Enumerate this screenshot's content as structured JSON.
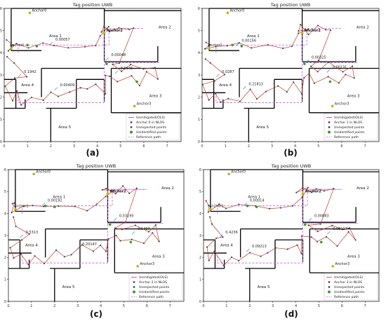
{
  "figure": {
    "panels": [
      {
        "title": "Tag position UWB",
        "caption": "(a)",
        "legend": [
          "Unmitigated(OLS)",
          "Anchor 0 in NLOS",
          "Unexpected points",
          "Unidentified points",
          "Reference path"
        ],
        "values": [
          {
            "text": "0.00057",
            "x": 2.2,
            "y": 4.55
          },
          {
            "text": "0.00048",
            "x": 4.6,
            "y": 3.85
          },
          {
            "text": "0.1942",
            "x": 0.85,
            "y": 3.1
          },
          {
            "text": "0.0645",
            "x": 5.0,
            "y": 3.25
          },
          {
            "text": "0.00409",
            "x": 2.4,
            "y": 2.5
          }
        ]
      },
      {
        "title": "Tag position UWB",
        "caption": "(b)",
        "legend": [
          "Unmitigated(OLS)",
          "Anchor 1 in NLOS",
          "Unexpected points",
          "Unidentified points",
          "Reference path"
        ],
        "values": [
          {
            "text": "0.00156",
            "x": 1.7,
            "y": 4.5
          },
          {
            "text": "0.00325",
            "x": 4.7,
            "y": 3.75
          },
          {
            "text": "0.0287",
            "x": 0.85,
            "y": 3.1
          },
          {
            "text": "0.00131",
            "x": 5.6,
            "y": 3.3
          },
          {
            "text": "0.21813",
            "x": 2.0,
            "y": 2.55
          }
        ]
      },
      {
        "title": "Tag position UWB",
        "caption": "(c)",
        "legend": [
          "Unmitigated(OLS)",
          "Anchor 2 in NLOS",
          "Unexpected points",
          "Unidentified points",
          "Reference path"
        ],
        "values": [
          {
            "text": "0.00192",
            "x": 1.7,
            "y": 4.55
          },
          {
            "text": "0.03195",
            "x": 4.8,
            "y": 3.85
          },
          {
            "text": "0.5313",
            "x": 0.75,
            "y": 3.1
          },
          {
            "text": "0.1497",
            "x": 5.6,
            "y": 3.25
          },
          {
            "text": "0.20147",
            "x": 3.2,
            "y": 2.55
          }
        ]
      },
      {
        "title": "Tag position UWB",
        "caption": "(d)",
        "legend": [
          "Unmitigated(OLS)",
          "Anchor 3 in NLOS",
          "Unexpected points",
          "Unidentified points",
          "Reference path"
        ],
        "values": [
          {
            "text": "0.00014",
            "x": 2.0,
            "y": 4.55
          },
          {
            "text": "0.00883",
            "x": 4.8,
            "y": 3.85
          },
          {
            "text": "0.4236",
            "x": 0.95,
            "y": 3.1
          },
          {
            "text": "0.00117",
            "x": 5.6,
            "y": 3.25
          },
          {
            "text": "0.09213",
            "x": 2.1,
            "y": 2.45
          }
        ]
      }
    ],
    "anchors": [
      {
        "label": "Anchor0",
        "x": 1.1,
        "y": 5.8,
        "bold": false
      },
      {
        "label": "Anchor1",
        "x": 0.3,
        "y": 4.2,
        "bold": false
      },
      {
        "label": "Anchor2",
        "x": 4.3,
        "y": 4.9,
        "bold": true
      },
      {
        "label": "Anchor3",
        "x": 5.6,
        "y": 1.6,
        "bold": false
      }
    ],
    "areas": [
      {
        "label": "Area 1",
        "x": 2.2,
        "y": 4.7
      },
      {
        "label": "Area 2",
        "x": 6.9,
        "y": 5.1
      },
      {
        "label": "Area 3",
        "x": 6.5,
        "y": 2.0
      },
      {
        "label": "Area 4",
        "x": 1.0,
        "y": 2.5
      },
      {
        "label": "Area 5",
        "x": 2.6,
        "y": 0.6
      }
    ],
    "colors": {
      "ols": "#c0392b",
      "nlos": "#5b2d8e",
      "unexpected": "#2f4f4f",
      "unidentified": "#3a9a2c",
      "reference": "#c060d8",
      "wall": "#000000",
      "anchor": "#b5b51a"
    }
  },
  "chart_data": {
    "type": "line",
    "title": "Tag position UWB",
    "xlim": [
      0,
      7.6
    ],
    "ylim": [
      0,
      6
    ],
    "xticks": [
      0,
      1,
      2,
      3,
      4,
      5,
      6,
      7
    ],
    "yticks": [
      0,
      1,
      2,
      3,
      4,
      5,
      6
    ],
    "grid": false,
    "legend_position": "lower-right",
    "series": [
      {
        "name": "Reference path",
        "x": [
          0.6,
          0.6,
          4.5,
          4.5,
          6.0,
          4.3,
          4.3,
          6.7,
          4.3,
          4.3,
          0.6,
          0.6
        ],
        "y": [
          4.0,
          4.35,
          4.35,
          5.1,
          5.1,
          5.1,
          3.55,
          3.55,
          3.55,
          1.75,
          1.75,
          2.3
        ]
      },
      {
        "name": "Unmitigated(OLS)",
        "x": [
          0.1,
          0.3,
          0.2,
          0.6,
          1.0,
          1.6,
          2.2,
          2.8,
          3.4,
          3.9,
          4.2,
          4.5,
          4.1,
          4.3,
          4.6,
          4.9,
          5.3,
          5.6,
          5.0,
          4.6,
          5.0,
          5.5,
          6.0,
          6.4,
          6.6,
          6.2,
          5.8,
          5.4,
          4.9,
          4.6,
          4.3,
          4.3,
          4.0,
          3.6,
          3.2,
          2.8,
          2.4,
          2.0,
          1.6,
          1.2,
          0.8,
          0.5,
          0.3,
          0.1,
          0.5,
          0.9,
          0.4,
          0.2
        ],
        "y": [
          4.5,
          4.4,
          4.1,
          4.35,
          4.3,
          4.4,
          4.3,
          4.3,
          4.2,
          4.35,
          4.8,
          5.1,
          5.0,
          5.2,
          4.9,
          5.2,
          5.0,
          5.1,
          3.6,
          3.4,
          3.2,
          3.5,
          3.2,
          3.4,
          2.8,
          3.1,
          2.6,
          2.9,
          2.7,
          3.0,
          2.9,
          2.2,
          2.6,
          2.3,
          2.5,
          2.2,
          2.0,
          2.3,
          1.8,
          2.0,
          1.7,
          2.2,
          1.9,
          2.5,
          2.8,
          3.0,
          3.5,
          3.8
        ]
      }
    ]
  }
}
